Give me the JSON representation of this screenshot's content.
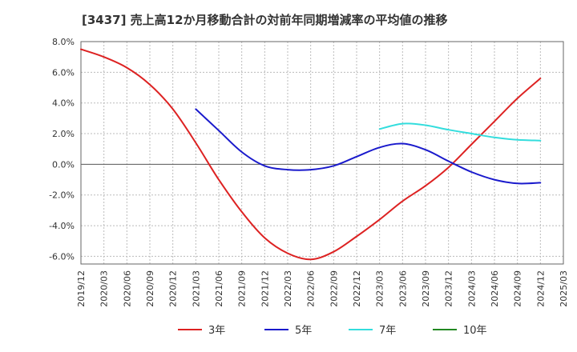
{
  "chart_data": {
    "type": "line",
    "title": "[3437]  売上高12か月移動合計の対前年同期増減率の平均値の推移",
    "xlabel": "",
    "ylabel": "",
    "x_ticks": [
      "2019/12",
      "2020/03",
      "2020/06",
      "2020/09",
      "2020/12",
      "2021/03",
      "2021/06",
      "2021/09",
      "2021/12",
      "2022/03",
      "2022/06",
      "2022/09",
      "2022/12",
      "2023/03",
      "2023/06",
      "2023/09",
      "2023/12",
      "2024/03",
      "2024/06",
      "2024/09",
      "2024/12",
      "2025/03"
    ],
    "y_ticks": [
      "8.0%",
      "6.0%",
      "4.0%",
      "2.0%",
      "0.0%",
      "-2.0%",
      "-4.0%",
      "-6.0%"
    ],
    "y_tick_values": [
      8,
      6,
      4,
      2,
      0,
      -2,
      -4,
      -6
    ],
    "ylim": [
      -6.5,
      8.0
    ],
    "grid": true,
    "legend_position": "bottom",
    "series": [
      {
        "name": "3年",
        "color": "#dd2222",
        "x": [
          "2019/12",
          "2020/03",
          "2020/06",
          "2020/09",
          "2020/12",
          "2021/03",
          "2021/06",
          "2021/09",
          "2021/12",
          "2022/03",
          "2022/06",
          "2022/09",
          "2022/12",
          "2023/03",
          "2023/06",
          "2023/09",
          "2023/12",
          "2024/03",
          "2024/06",
          "2024/09",
          "2024/12"
        ],
        "values": [
          7.5,
          7.0,
          6.3,
          5.2,
          3.6,
          1.4,
          -1.0,
          -3.1,
          -4.8,
          -5.8,
          -6.2,
          -5.7,
          -4.7,
          -3.6,
          -2.4,
          -1.4,
          -0.2,
          1.3,
          2.8,
          4.3,
          5.6
        ]
      },
      {
        "name": "5年",
        "color": "#1a1acc",
        "x": [
          "2021/03",
          "2021/06",
          "2021/09",
          "2021/12",
          "2022/03",
          "2022/06",
          "2022/09",
          "2022/12",
          "2023/03",
          "2023/06",
          "2023/09",
          "2023/12",
          "2024/03",
          "2024/06",
          "2024/09",
          "2024/12"
        ],
        "values": [
          3.6,
          2.2,
          0.8,
          -0.1,
          -0.35,
          -0.35,
          -0.1,
          0.5,
          1.1,
          1.35,
          0.95,
          0.2,
          -0.5,
          -1.0,
          -1.25,
          -1.2
        ]
      },
      {
        "name": "7年",
        "color": "#33dddd",
        "x": [
          "2023/03",
          "2023/06",
          "2023/09",
          "2023/12",
          "2024/03",
          "2024/06",
          "2024/09",
          "2024/12"
        ],
        "values": [
          2.3,
          2.65,
          2.55,
          2.25,
          2.0,
          1.75,
          1.6,
          1.55
        ]
      },
      {
        "name": "10年",
        "color": "#228822",
        "x": [],
        "values": []
      }
    ]
  }
}
